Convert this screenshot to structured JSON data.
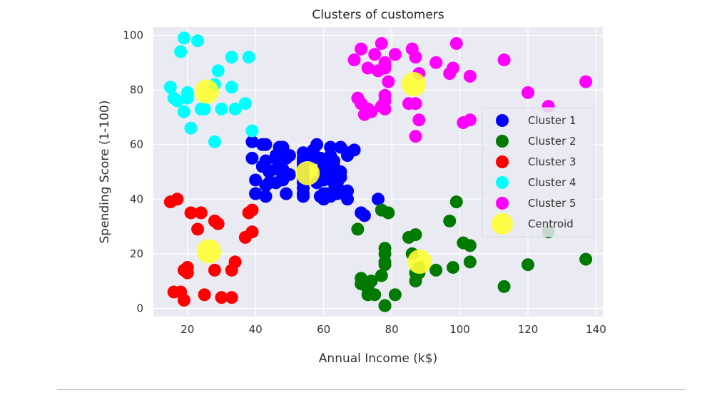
{
  "chart_data": {
    "type": "scatter",
    "title": "Clusters of customers",
    "xlabel": "Annual Income (k$)",
    "ylabel": "Spending Score (1-100)",
    "xlim": [
      10,
      142
    ],
    "ylim": [
      -3,
      103
    ],
    "xticks": [
      20,
      40,
      60,
      80,
      100,
      120,
      140
    ],
    "yticks": [
      0,
      20,
      40,
      60,
      80,
      100
    ],
    "grid": true,
    "legend_position": "center-right",
    "series": [
      {
        "name": "Cluster 1",
        "color": "#0000ff",
        "points": [
          [
            39,
            61
          ],
          [
            39,
            55
          ],
          [
            40,
            47
          ],
          [
            40,
            42
          ],
          [
            40,
            42
          ],
          [
            42,
            52
          ],
          [
            42,
            60
          ],
          [
            43,
            54
          ],
          [
            43,
            60
          ],
          [
            43,
            45
          ],
          [
            43,
            41
          ],
          [
            44,
            50
          ],
          [
            44,
            46
          ],
          [
            46,
            51
          ],
          [
            46,
            46
          ],
          [
            46,
            56
          ],
          [
            46,
            55
          ],
          [
            47,
            52
          ],
          [
            47,
            59
          ],
          [
            48,
            51
          ],
          [
            48,
            59
          ],
          [
            48,
            50
          ],
          [
            48,
            48
          ],
          [
            48,
            59
          ],
          [
            48,
            47
          ],
          [
            49,
            55
          ],
          [
            49,
            42
          ],
          [
            50,
            49
          ],
          [
            50,
            56
          ],
          [
            54,
            47
          ],
          [
            54,
            54
          ],
          [
            54,
            53
          ],
          [
            54,
            48
          ],
          [
            54,
            52
          ],
          [
            54,
            42
          ],
          [
            54,
            51
          ],
          [
            54,
            55
          ],
          [
            54,
            41
          ],
          [
            54,
            44
          ],
          [
            54,
            57
          ],
          [
            54,
            46
          ],
          [
            57,
            58
          ],
          [
            57,
            55
          ],
          [
            58,
            60
          ],
          [
            58,
            46
          ],
          [
            59,
            55
          ],
          [
            59,
            41
          ],
          [
            60,
            49
          ],
          [
            60,
            40
          ],
          [
            60,
            42
          ],
          [
            60,
            52
          ],
          [
            60,
            47
          ],
          [
            60,
            50
          ],
          [
            61,
            42
          ],
          [
            61,
            49
          ],
          [
            62,
            41
          ],
          [
            62,
            48
          ],
          [
            62,
            59
          ],
          [
            62,
            55
          ],
          [
            62,
            56
          ],
          [
            62,
            42
          ],
          [
            63,
            50
          ],
          [
            63,
            46
          ],
          [
            63,
            43
          ],
          [
            63,
            48
          ],
          [
            63,
            52
          ],
          [
            63,
            54
          ],
          [
            64,
            42
          ],
          [
            64,
            46
          ],
          [
            65,
            48
          ],
          [
            65,
            50
          ],
          [
            65,
            43
          ],
          [
            65,
            59
          ],
          [
            67,
            43
          ],
          [
            67,
            57
          ],
          [
            67,
            56
          ],
          [
            67,
            40
          ],
          [
            69,
            58
          ],
          [
            71,
            35
          ],
          [
            72,
            34
          ],
          [
            76,
            40
          ]
        ]
      },
      {
        "name": "Cluster 2",
        "color": "#007a00",
        "points": [
          [
            70,
            29
          ],
          [
            71,
            11
          ],
          [
            71,
            9
          ],
          [
            73,
            5
          ],
          [
            73,
            7
          ],
          [
            74,
            10
          ],
          [
            75,
            5
          ],
          [
            77,
            12
          ],
          [
            77,
            36
          ],
          [
            78,
            22
          ],
          [
            78,
            17
          ],
          [
            78,
            20
          ],
          [
            78,
            16
          ],
          [
            78,
            1
          ],
          [
            78,
            1
          ],
          [
            79,
            35
          ],
          [
            81,
            5
          ],
          [
            85,
            26
          ],
          [
            86,
            20
          ],
          [
            87,
            27
          ],
          [
            87,
            13
          ],
          [
            87,
            10
          ],
          [
            88,
            13
          ],
          [
            88,
            15
          ],
          [
            93,
            14
          ],
          [
            97,
            32
          ],
          [
            98,
            15
          ],
          [
            99,
            39
          ],
          [
            101,
            24
          ],
          [
            103,
            17
          ],
          [
            103,
            23
          ],
          [
            113,
            8
          ],
          [
            120,
            16
          ],
          [
            126,
            28
          ],
          [
            137,
            18
          ]
        ]
      },
      {
        "name": "Cluster 3",
        "color": "#ff0000",
        "points": [
          [
            15,
            39
          ],
          [
            16,
            6
          ],
          [
            17,
            40
          ],
          [
            18,
            6
          ],
          [
            19,
            3
          ],
          [
            19,
            14
          ],
          [
            20,
            15
          ],
          [
            20,
            13
          ],
          [
            21,
            35
          ],
          [
            23,
            29
          ],
          [
            24,
            35
          ],
          [
            25,
            5
          ],
          [
            28,
            14
          ],
          [
            28,
            32
          ],
          [
            29,
            31
          ],
          [
            30,
            4
          ],
          [
            33,
            4
          ],
          [
            33,
            14
          ],
          [
            34,
            17
          ],
          [
            37,
            26
          ],
          [
            38,
            35
          ],
          [
            39,
            28
          ],
          [
            39,
            36
          ]
        ]
      },
      {
        "name": "Cluster 4",
        "color": "#00ffff",
        "points": [
          [
            15,
            81
          ],
          [
            16,
            77
          ],
          [
            17,
            76
          ],
          [
            18,
            94
          ],
          [
            19,
            72
          ],
          [
            19,
            99
          ],
          [
            20,
            77
          ],
          [
            20,
            79
          ],
          [
            21,
            66
          ],
          [
            23,
            98
          ],
          [
            24,
            73
          ],
          [
            25,
            73
          ],
          [
            28,
            82
          ],
          [
            28,
            61
          ],
          [
            29,
            87
          ],
          [
            30,
            73
          ],
          [
            33,
            92
          ],
          [
            33,
            81
          ],
          [
            34,
            73
          ],
          [
            37,
            75
          ],
          [
            38,
            92
          ],
          [
            39,
            65
          ]
        ]
      },
      {
        "name": "Cluster 5",
        "color": "#ff00ff",
        "points": [
          [
            69,
            91
          ],
          [
            70,
            77
          ],
          [
            71,
            95
          ],
          [
            71,
            75
          ],
          [
            71,
            75
          ],
          [
            72,
            71
          ],
          [
            73,
            88
          ],
          [
            73,
            73
          ],
          [
            74,
            72
          ],
          [
            75,
            93
          ],
          [
            76,
            87
          ],
          [
            77,
            97
          ],
          [
            77,
            74
          ],
          [
            78,
            90
          ],
          [
            78,
            88
          ],
          [
            78,
            76
          ],
          [
            78,
            89
          ],
          [
            78,
            78
          ],
          [
            78,
            73
          ],
          [
            79,
            83
          ],
          [
            81,
            93
          ],
          [
            85,
            75
          ],
          [
            86,
            95
          ],
          [
            87,
            63
          ],
          [
            87,
            75
          ],
          [
            87,
            92
          ],
          [
            88,
            86
          ],
          [
            88,
            69
          ],
          [
            93,
            90
          ],
          [
            97,
            86
          ],
          [
            98,
            88
          ],
          [
            99,
            97
          ],
          [
            101,
            68
          ],
          [
            103,
            85
          ],
          [
            103,
            69
          ],
          [
            113,
            91
          ],
          [
            120,
            79
          ],
          [
            126,
            74
          ],
          [
            137,
            83
          ]
        ]
      },
      {
        "name": "Centroid",
        "color": "#ffff33",
        "points": [
          [
            55.3,
            49.5
          ],
          [
            86.5,
            82.1
          ],
          [
            25.7,
            79.4
          ],
          [
            88.2,
            17.1
          ],
          [
            26.3,
            20.9
          ]
        ]
      }
    ]
  }
}
